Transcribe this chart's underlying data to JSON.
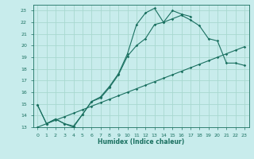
{
  "xlabel": "Humidex (Indice chaleur)",
  "bg_color": "#c8ecec",
  "line_color": "#1a7060",
  "grid_color": "#a8d8d0",
  "xlim": [
    -0.5,
    23.5
  ],
  "ylim": [
    13,
    23.5
  ],
  "xticks": [
    0,
    1,
    2,
    3,
    4,
    5,
    6,
    7,
    8,
    9,
    10,
    11,
    12,
    13,
    14,
    15,
    16,
    17,
    18,
    19,
    20,
    21,
    22,
    23
  ],
  "yticks": [
    13,
    14,
    15,
    16,
    17,
    18,
    19,
    20,
    21,
    22,
    23
  ],
  "line1_x": [
    0,
    1,
    2,
    3,
    4,
    5,
    6,
    7,
    8,
    9,
    10,
    11,
    12,
    13,
    14,
    15,
    16,
    17,
    18,
    19,
    20,
    21,
    22,
    23
  ],
  "line1_y": [
    14.9,
    13.3,
    13.7,
    13.3,
    13.0,
    14.1,
    15.2,
    15.5,
    16.4,
    17.5,
    19.1,
    20.0,
    20.6,
    21.8,
    22.0,
    22.3,
    22.6,
    22.2,
    21.7,
    20.6,
    20.4,
    18.5,
    18.5,
    18.3
  ],
  "line2_x": [
    0,
    1,
    2,
    3,
    4,
    5,
    6,
    7,
    8,
    9,
    10,
    11,
    12,
    13,
    14,
    15,
    16,
    17
  ],
  "line2_y": [
    14.9,
    13.3,
    13.7,
    13.3,
    13.1,
    14.1,
    15.2,
    15.6,
    16.5,
    17.6,
    19.3,
    21.8,
    22.8,
    23.2,
    22.0,
    23.0,
    22.7,
    22.5
  ],
  "line3_x": [
    0,
    1,
    2,
    3,
    4,
    5,
    6,
    7,
    8,
    9,
    10,
    11,
    12,
    13,
    14,
    15,
    16,
    17,
    18,
    19,
    20,
    21,
    22,
    23
  ],
  "line3_y": [
    13.0,
    13.3,
    13.6,
    13.9,
    14.2,
    14.5,
    14.8,
    15.1,
    15.4,
    15.7,
    16.0,
    16.3,
    16.6,
    16.9,
    17.2,
    17.5,
    17.8,
    18.1,
    18.4,
    18.7,
    19.0,
    19.3,
    19.6,
    19.9
  ]
}
